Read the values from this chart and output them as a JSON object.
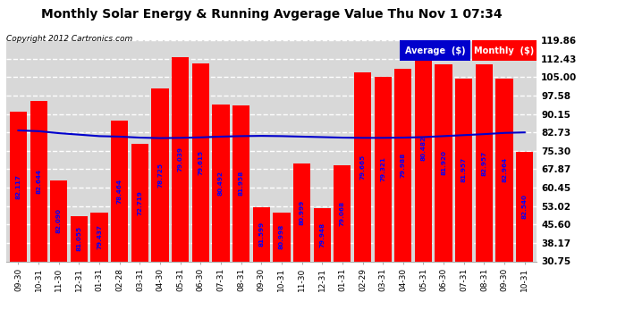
{
  "title": "Monthly Solar Energy & Running Avgerage Value Thu Nov 1 07:34",
  "copyright": "Copyright 2012 Cartronics.com",
  "categories": [
    "09-30",
    "10-31",
    "11-30",
    "12-31",
    "01-31",
    "02-28",
    "03-31",
    "04-30",
    "05-31",
    "06-30",
    "07-31",
    "08-31",
    "09-30",
    "10-31",
    "11-30",
    "12-31",
    "01-31",
    "02-29",
    "03-31",
    "04-30",
    "05-31",
    "06-30",
    "07-31",
    "08-31",
    "09-30",
    "10-31"
  ],
  "bar_values": [
    91.0,
    95.5,
    63.5,
    49.0,
    50.5,
    87.5,
    78.0,
    100.5,
    113.0,
    110.5,
    94.0,
    93.5,
    52.5,
    50.5,
    70.0,
    52.0,
    69.5,
    107.0,
    105.0,
    108.5,
    122.0,
    110.0,
    104.5,
    110.0,
    104.5,
    75.0
  ],
  "bar_labels": [
    "82.117",
    "82.644",
    "82.090",
    "81.055",
    "79.437",
    "78.464",
    "72.719",
    "78.725",
    "79.039",
    "79.615",
    "80.492",
    "81.958",
    "81.599",
    "80.998",
    "80.999",
    "79.948",
    "79.068",
    "79.665",
    "79.321",
    "79.988",
    "80.482",
    "81.920",
    "81.957",
    "82.957",
    "82.964",
    "82.540"
  ],
  "avg_values": [
    83.5,
    83.2,
    82.4,
    81.8,
    81.2,
    81.0,
    80.6,
    80.4,
    80.5,
    80.7,
    81.0,
    81.2,
    81.3,
    81.2,
    81.0,
    80.8,
    80.6,
    80.5,
    80.5,
    80.6,
    80.8,
    81.2,
    81.6,
    82.0,
    82.5,
    82.7
  ],
  "bar_color": "#ff0000",
  "avg_color": "#0000cc",
  "background_color": "#ffffff",
  "plot_bg_color": "#d8d8d8",
  "grid_color": "#ffffff",
  "ytick_labels": [
    "30.75",
    "38.17",
    "45.60",
    "53.02",
    "60.45",
    "67.87",
    "75.30",
    "82.73",
    "90.15",
    "97.58",
    "105.00",
    "112.43",
    "119.86"
  ],
  "ytick_values": [
    30.75,
    38.17,
    45.6,
    53.02,
    60.45,
    67.87,
    75.3,
    82.73,
    90.15,
    97.58,
    105.0,
    112.43,
    119.86
  ],
  "ymin": 30.75,
  "ymax": 119.86,
  "legend_avg": "Average  ($)",
  "legend_monthly": "Monthly  ($)",
  "title_fontsize": 10,
  "copyright_fontsize": 6.5,
  "label_fontsize": 5.2,
  "ytick_fontsize": 7.5,
  "xtick_fontsize": 6.5
}
